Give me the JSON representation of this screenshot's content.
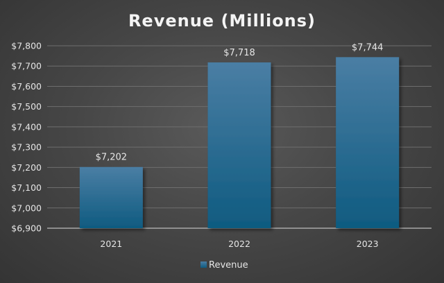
{
  "chart_data": {
    "type": "bar",
    "title": "Revenue (Millions)",
    "categories": [
      "2021",
      "2022",
      "2023"
    ],
    "series": [
      {
        "name": "Revenue",
        "values": [
          7202,
          7718,
          7744
        ]
      }
    ],
    "data_labels": [
      "$7,202",
      "$7,718",
      "$7,744"
    ],
    "ylim": [
      6900,
      7800
    ],
    "y_ticks": [
      6900,
      7000,
      7100,
      7200,
      7300,
      7400,
      7500,
      7600,
      7700,
      7800
    ],
    "y_tick_labels": [
      "$6,900",
      "$7,000",
      "$7,100",
      "$7,200",
      "$7,300",
      "$7,400",
      "$7,500",
      "$7,600",
      "$7,700",
      "$7,800"
    ],
    "xlabel": "",
    "ylabel": "",
    "grid": true,
    "legend_position": "bottom",
    "colors": {
      "bar_top": "#4a7ea4",
      "bar_bottom": "#0f5b80",
      "grid": "#6e6e6e",
      "text": "#e6e6e6"
    }
  }
}
